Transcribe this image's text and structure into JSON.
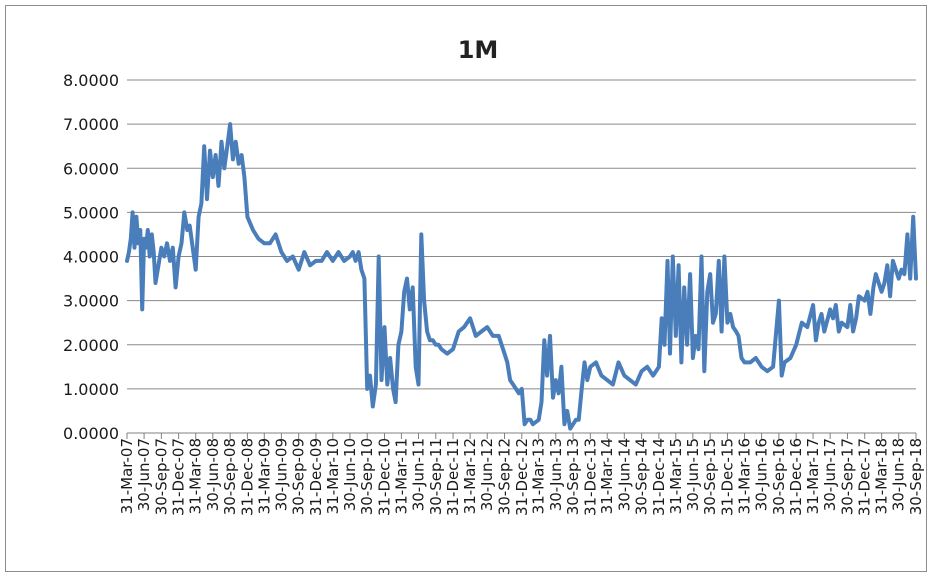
{
  "chart_data": {
    "type": "line",
    "title": "1M",
    "xlabel": "",
    "ylabel": "",
    "ylim": [
      0,
      8
    ],
    "y_ticks": [
      "0.0000",
      "1.0000",
      "2.0000",
      "3.0000",
      "4.0000",
      "5.0000",
      "6.0000",
      "7.0000",
      "8.0000"
    ],
    "x_tick_labels": [
      "31-Mar-07",
      "30-Jun-07",
      "30-Sep-07",
      "31-Dec-07",
      "31-Mar-08",
      "30-Jun-08",
      "30-Sep-08",
      "31-Dec-08",
      "31-Mar-09",
      "30-Jun-09",
      "30-Sep-09",
      "31-Dec-09",
      "31-Mar-10",
      "30-Jun-10",
      "30-Sep-10",
      "31-Dec-10",
      "31-Mar-11",
      "30-Jun-11",
      "30-Sep-11",
      "31-Dec-11",
      "31-Mar-12",
      "30-Jun-12",
      "30-Sep-12",
      "31-Dec-12",
      "31-Mar-13",
      "30-Jun-13",
      "30-Sep-13",
      "31-Dec-13",
      "31-Mar-14",
      "30-Jun-14",
      "30-Sep-14",
      "31-Dec-14",
      "31-Mar-15",
      "30-Jun-15",
      "30-Sep-15",
      "31-Dec-15",
      "31-Mar-16",
      "30-Jun-16",
      "30-Sep-16",
      "31-Dec-16",
      "31-Mar-17",
      "30-Jun-17",
      "30-Sep-17",
      "31-Dec-17",
      "31-Mar-18",
      "30-Jun-18",
      "30-Sep-18"
    ],
    "grid": true,
    "legend": "none",
    "line_color": "#4a7ebb",
    "series": [
      {
        "x": [
          "31-Mar-07",
          "2007-04-10",
          "2007-04-20",
          "2007-04-30",
          "2007-05-10",
          "2007-05-20",
          "2007-05-30",
          "2007-06-10",
          "2007-06-20",
          "30-Jun-07",
          "2007-07-10",
          "2007-07-20",
          "2007-07-30",
          "2007-08-10",
          "2007-08-20",
          "2007-08-30",
          "30-Sep-07",
          "2007-10-15",
          "2007-10-30",
          "2007-11-15",
          "2007-11-30",
          "2007-12-15",
          "31-Dec-07",
          "2008-01-15",
          "2008-01-30",
          "2008-02-15",
          "2008-02-28",
          "31-Mar-08",
          "2008-04-15",
          "2008-04-30",
          "2008-05-15",
          "2008-05-30",
          "2008-06-15",
          "30-Jun-08",
          "2008-07-15",
          "2008-07-30",
          "2008-08-15",
          "2008-08-30",
          "2008-09-15",
          "30-Sep-08",
          "2008-10-15",
          "2008-10-30",
          "2008-11-15",
          "2008-11-30",
          "2008-12-15",
          "31-Dec-08",
          "2009-01-30",
          "2009-02-28",
          "31-Mar-09",
          "2009-04-30",
          "2009-05-30",
          "30-Jun-09",
          "2009-07-30",
          "2009-08-30",
          "30-Sep-09",
          "2009-10-30",
          "2009-11-30",
          "31-Dec-09",
          "2010-01-30",
          "2010-02-28",
          "31-Mar-10",
          "2010-04-30",
          "2010-05-30",
          "30-Jun-10",
          "2010-07-15",
          "2010-07-30",
          "2010-08-15",
          "2010-08-30",
          "2010-09-15",
          "30-Sep-10",
          "2010-10-15",
          "2010-10-30",
          "2010-11-15",
          "2010-11-30",
          "2010-12-15",
          "31-Dec-10",
          "2011-01-15",
          "2011-01-30",
          "2011-02-15",
          "2011-02-28",
          "2011-03-15",
          "31-Mar-11",
          "2011-04-15",
          "2011-04-30",
          "2011-05-15",
          "2011-05-30",
          "2011-06-15",
          "30-Jun-11",
          "2011-07-15",
          "2011-07-30",
          "2011-08-15",
          "2011-08-30",
          "2011-09-15",
          "30-Sep-11",
          "2011-10-15",
          "2011-10-30",
          "2011-11-30",
          "31-Dec-11",
          "2012-01-30",
          "2012-02-28",
          "31-Mar-12",
          "2012-04-30",
          "2012-05-30",
          "30-Jun-12",
          "2012-07-30",
          "2012-08-30",
          "30-Sep-12",
          "2012-10-15",
          "2012-10-30",
          "2012-11-15",
          "2012-11-30",
          "2012-12-15",
          "31-Dec-12",
          "2013-01-15",
          "2013-01-30",
          "2013-02-15",
          "2013-02-28",
          "31-Mar-13",
          "2013-04-15",
          "2013-04-30",
          "2013-05-15",
          "2013-05-30",
          "2013-06-15",
          "30-Jun-13",
          "2013-07-15",
          "2013-07-30",
          "2013-08-15",
          "2013-08-30",
          "2013-09-15",
          "30-Sep-13",
          "2013-10-15",
          "2013-10-30",
          "2013-11-15",
          "2013-11-30",
          "2013-12-15",
          "31-Dec-13",
          "2014-01-30",
          "2014-02-28",
          "31-Mar-14",
          "2014-04-30",
          "2014-05-30",
          "30-Jun-14",
          "2014-07-30",
          "2014-08-30",
          "30-Sep-14",
          "2014-10-30",
          "2014-11-30",
          "31-Dec-14",
          "2015-01-15",
          "2015-01-30",
          "2015-02-15",
          "2015-02-28",
          "2015-03-15",
          "31-Mar-15",
          "2015-04-15",
          "2015-04-30",
          "2015-05-15",
          "2015-05-30",
          "2015-06-15",
          "30-Jun-15",
          "2015-07-15",
          "2015-07-30",
          "2015-08-15",
          "2015-08-30",
          "2015-09-15",
          "30-Sep-15",
          "2015-10-15",
          "2015-10-30",
          "2015-11-15",
          "2015-11-30",
          "2015-12-15",
          "31-Dec-15",
          "2016-01-15",
          "2016-01-30",
          "2016-02-15",
          "2016-02-28",
          "2016-03-15",
          "31-Mar-16",
          "2016-04-30",
          "2016-05-30",
          "30-Jun-16",
          "2016-07-30",
          "2016-08-30",
          "30-Sep-16",
          "2016-10-15",
          "2016-10-30",
          "2016-11-30",
          "31-Dec-16",
          "2017-01-30",
          "2017-02-28",
          "31-Mar-17",
          "2017-04-15",
          "2017-04-30",
          "2017-05-15",
          "2017-05-30",
          "30-Jun-17",
          "2017-07-15",
          "2017-07-30",
          "2017-08-15",
          "2017-08-30",
          "30-Sep-17",
          "2017-10-15",
          "2017-10-30",
          "2017-11-15",
          "2017-11-30",
          "31-Dec-17",
          "2018-01-15",
          "2018-01-30",
          "2018-02-15",
          "2018-02-28",
          "31-Mar-18",
          "2018-04-15",
          "2018-04-30",
          "2018-05-15",
          "2018-05-30",
          "30-Jun-18",
          "2018-07-15",
          "2018-07-30",
          "2018-08-15",
          "2018-08-30",
          "2018-09-15",
          "30-Sep-18"
        ],
        "values": [
          3.9,
          4.1,
          4.4,
          5.0,
          4.2,
          4.9,
          4.3,
          4.6,
          2.8,
          4.4,
          4.2,
          4.6,
          4.0,
          4.5,
          4.1,
          3.4,
          4.2,
          4.0,
          4.3,
          3.9,
          4.2,
          3.3,
          4.0,
          4.3,
          5.0,
          4.6,
          4.7,
          3.7,
          4.9,
          5.2,
          6.5,
          5.3,
          6.4,
          5.8,
          6.3,
          5.6,
          6.6,
          6.0,
          6.5,
          7.0,
          6.2,
          6.6,
          6.1,
          6.3,
          5.8,
          4.9,
          4.6,
          4.4,
          4.3,
          4.3,
          4.5,
          4.1,
          3.9,
          4.0,
          3.7,
          4.1,
          3.8,
          3.9,
          3.9,
          4.1,
          3.9,
          4.1,
          3.9,
          4.0,
          4.1,
          3.9,
          4.1,
          3.7,
          3.5,
          1.0,
          1.3,
          0.6,
          1.1,
          4.0,
          1.2,
          2.4,
          1.1,
          1.7,
          1.0,
          0.7,
          2.0,
          2.3,
          3.2,
          3.5,
          2.8,
          3.3,
          1.5,
          1.1,
          4.5,
          3.0,
          2.3,
          2.1,
          2.1,
          2.0,
          2.0,
          1.9,
          1.8,
          1.9,
          2.3,
          2.4,
          2.6,
          2.2,
          2.3,
          2.4,
          2.2,
          2.2,
          1.8,
          1.6,
          1.2,
          1.1,
          1.0,
          0.9,
          1.0,
          0.2,
          0.3,
          0.3,
          0.2,
          0.3,
          0.7,
          2.1,
          1.3,
          2.2,
          0.8,
          1.2,
          0.9,
          1.5,
          0.2,
          0.5,
          0.1,
          0.2,
          0.3,
          0.3,
          1.0,
          1.6,
          1.2,
          1.5,
          1.6,
          1.3,
          1.2,
          1.1,
          1.6,
          1.3,
          1.2,
          1.1,
          1.4,
          1.5,
          1.3,
          1.5,
          2.6,
          2.0,
          3.9,
          1.8,
          4.0,
          2.2,
          3.8,
          1.6,
          3.3,
          2.0,
          3.6,
          1.7,
          2.2,
          1.9,
          4.0,
          1.4,
          3.2,
          3.6,
          2.5,
          2.7,
          3.9,
          2.3,
          4.0,
          2.5,
          2.7,
          2.4,
          2.3,
          2.2,
          1.7,
          1.6,
          1.6,
          1.7,
          1.5,
          1.4,
          1.5,
          3.0,
          1.3,
          1.6,
          1.7,
          2.0,
          2.5,
          2.4,
          2.9,
          2.1,
          2.5,
          2.7,
          2.3,
          2.8,
          2.6,
          2.9,
          2.3,
          2.5,
          2.4,
          2.9,
          2.3,
          2.6,
          3.1,
          3.0,
          3.2,
          2.7,
          3.3,
          3.6,
          3.2,
          3.4,
          3.8,
          3.1,
          3.9,
          3.5,
          3.7,
          3.6,
          4.5,
          3.5,
          4.9,
          3.5
        ]
      }
    ]
  }
}
